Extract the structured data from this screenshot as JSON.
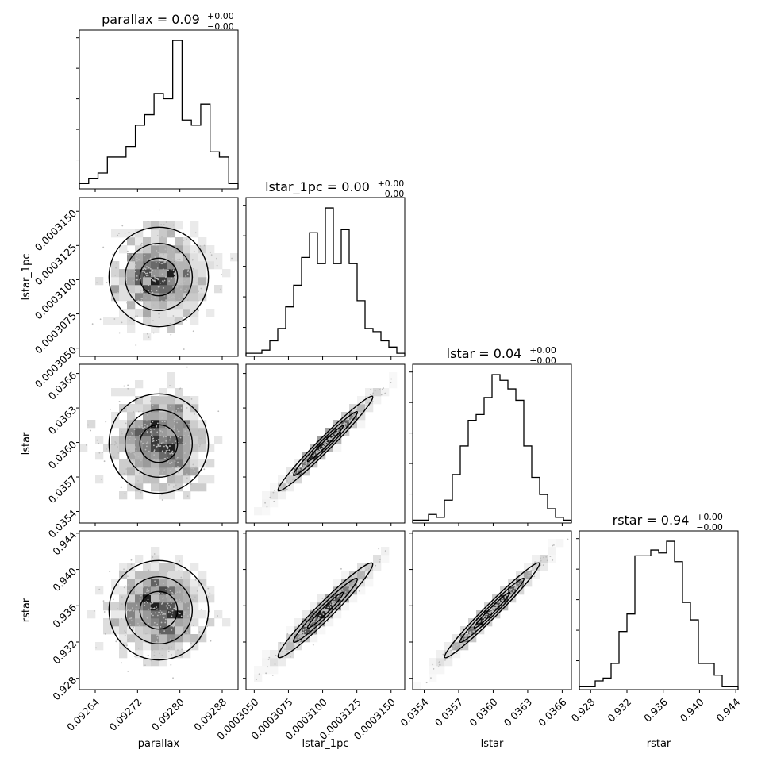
{
  "chart_data": {
    "type": "corner",
    "parameters": [
      {
        "name": "parallax",
        "xlabel": "parallax",
        "ylabel": "",
        "title": "parallax = 0.09",
        "title_upper": "+0.00",
        "title_lower": "−0.00",
        "axis_range": [
          0.09261,
          0.09291
        ],
        "ticks": [
          0.09264,
          0.09272,
          0.0928,
          0.09288
        ],
        "tick_labels": [
          "0.09264",
          "0.09272",
          "0.09280",
          "0.09288"
        ],
        "histogram": [
          1,
          2,
          3,
          6,
          6,
          8,
          12,
          14,
          18,
          17,
          28,
          13,
          12,
          16,
          7,
          6,
          1
        ]
      },
      {
        "name": "lstar_1pc",
        "xlabel": "lstar_1pc",
        "ylabel": "lstar_1pc",
        "title": "lstar_1pc = 0.00",
        "title_upper": "+0.00",
        "title_lower": "−0.00",
        "axis_range": [
          0.0003044,
          0.000316
        ],
        "ticks": [
          0.000305,
          0.0003075,
          0.00031,
          0.0003125,
          0.000315
        ],
        "tick_labels": [
          "0.0003050",
          "0.0003075",
          "0.0003100",
          "0.0003125",
          "0.0003150"
        ],
        "histogram": [
          1,
          1,
          2,
          5,
          9,
          16,
          23,
          32,
          40,
          30,
          48,
          30,
          41,
          30,
          18,
          9,
          8,
          5,
          3,
          1
        ]
      },
      {
        "name": "lstar",
        "xlabel": "lstar",
        "ylabel": "lstar",
        "title": "lstar = 0.04",
        "title_upper": "+0.00",
        "title_lower": "−0.00",
        "axis_range": [
          0.0353,
          0.03668
        ],
        "ticks": [
          0.0354,
          0.0357,
          0.036,
          0.0363,
          0.0366
        ],
        "tick_labels": [
          "0.0354",
          "0.0357",
          "0.0360",
          "0.0363",
          "0.0366"
        ],
        "histogram": [
          1,
          1,
          3,
          2,
          8,
          17,
          27,
          36,
          38,
          44,
          52,
          50,
          47,
          43,
          27,
          16,
          10,
          5,
          2,
          1
        ]
      },
      {
        "name": "rstar",
        "xlabel": "rstar",
        "ylabel": "rstar",
        "title": "rstar = 0.94",
        "title_upper": "+0.00",
        "title_lower": "−0.00",
        "axis_range": [
          0.92675,
          0.94425
        ],
        "ticks": [
          0.928,
          0.932,
          0.936,
          0.94,
          0.944
        ],
        "tick_labels": [
          "0.928",
          "0.932",
          "0.936",
          "0.940",
          "0.944"
        ],
        "histogram": [
          1,
          1,
          3,
          4,
          9,
          20,
          26,
          46,
          46,
          48,
          47,
          51,
          44,
          30,
          24,
          9,
          9,
          5,
          1,
          1
        ]
      }
    ],
    "correlations": [
      {
        "x": 0,
        "y": 1,
        "rho": 0.0
      },
      {
        "x": 0,
        "y": 2,
        "rho": 0.0
      },
      {
        "x": 0,
        "y": 3,
        "rho": 0.0
      },
      {
        "x": 1,
        "y": 2,
        "rho": 0.985
      },
      {
        "x": 1,
        "y": 3,
        "rho": 0.97
      },
      {
        "x": 2,
        "y": 3,
        "rho": 0.99
      }
    ],
    "grid": false
  }
}
